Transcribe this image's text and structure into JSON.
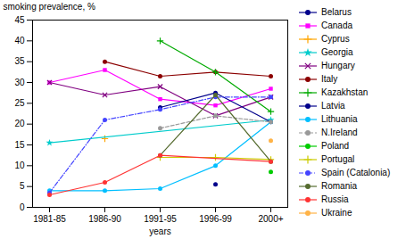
{
  "chart_data": {
    "type": "line",
    "xlabel": "years",
    "ylabel": "smoking prevalence, %",
    "categories": [
      "1981-85",
      "1986-90",
      "1991-95",
      "1996-99",
      "2000+"
    ],
    "series": [
      {
        "name": "Belarus",
        "color": "#00008B",
        "marker": "circle",
        "line_style": "solid",
        "values": [
          null,
          null,
          null,
          5.5,
          null
        ]
      },
      {
        "name": "Canada",
        "color": "#FF00FF",
        "marker": "square",
        "line_style": "solid",
        "values": [
          30.0,
          33.0,
          26.0,
          24.5,
          28.5
        ]
      },
      {
        "name": "Cyprus",
        "color": "#FFA500",
        "marker": "plus",
        "line_style": "solid",
        "values": [
          null,
          16.5,
          null,
          null,
          null
        ]
      },
      {
        "name": "Georgia",
        "color": "#00CCCC",
        "marker": "star",
        "line_style": "solid",
        "values": [
          15.5,
          null,
          null,
          null,
          21.0
        ]
      },
      {
        "name": "Hungary",
        "color": "#800080",
        "marker": "times",
        "line_style": "solid",
        "values": [
          30.0,
          27.0,
          29.0,
          22.0,
          26.5
        ]
      },
      {
        "name": "Italy",
        "color": "#8B0000",
        "marker": "circle",
        "line_style": "solid",
        "values": [
          null,
          35.0,
          31.5,
          32.5,
          31.5
        ]
      },
      {
        "name": "Kazakhstan",
        "color": "#00AA00",
        "marker": "plus",
        "line_style": "solid",
        "values": [
          null,
          null,
          40.0,
          32.5,
          23.0
        ]
      },
      {
        "name": "Latvia",
        "color": "#00008B",
        "marker": "circle",
        "line_style": "solid",
        "values": [
          null,
          null,
          24.0,
          27.5,
          20.5
        ]
      },
      {
        "name": "Lithuania",
        "color": "#00BFFF",
        "marker": "circle",
        "line_style": "solid",
        "values": [
          4.0,
          4.0,
          4.5,
          10.0,
          20.5
        ]
      },
      {
        "name": "N.Ireland",
        "color": "#999999",
        "marker": "circle",
        "line_style": "dashed",
        "values": [
          null,
          null,
          19.0,
          22.0,
          20.5
        ]
      },
      {
        "name": "Poland",
        "color": "#00CC00",
        "marker": "circle",
        "line_style": "solid",
        "values": [
          null,
          null,
          null,
          null,
          8.5
        ]
      },
      {
        "name": "Portugal",
        "color": "#CCCC00",
        "marker": "plus",
        "line_style": "solid",
        "values": [
          null,
          null,
          12.0,
          12.0,
          11.5
        ]
      },
      {
        "name": "Spain (Catalonia)",
        "color": "#4444FF",
        "marker": "circle",
        "line_style": "dashdot",
        "values": [
          3.5,
          21.0,
          23.5,
          26.5,
          26.5
        ]
      },
      {
        "name": "Romania",
        "color": "#556B2F",
        "marker": "circle",
        "line_style": "solid",
        "values": [
          null,
          null,
          12.5,
          27.0,
          11.0
        ]
      },
      {
        "name": "Russia",
        "color": "#FF3333",
        "marker": "circle",
        "line_style": "solid",
        "values": [
          3.0,
          6.0,
          12.5,
          null,
          11.0
        ]
      },
      {
        "name": "Ukraine",
        "color": "#FFB347",
        "marker": "circle",
        "line_style": "solid",
        "values": [
          null,
          null,
          null,
          null,
          16.0
        ]
      }
    ],
    "ylim": [
      0,
      45
    ],
    "yticks": [
      0,
      5,
      10,
      15,
      20,
      25,
      30,
      35,
      40,
      45
    ],
    "grid": false,
    "legend": "right"
  }
}
